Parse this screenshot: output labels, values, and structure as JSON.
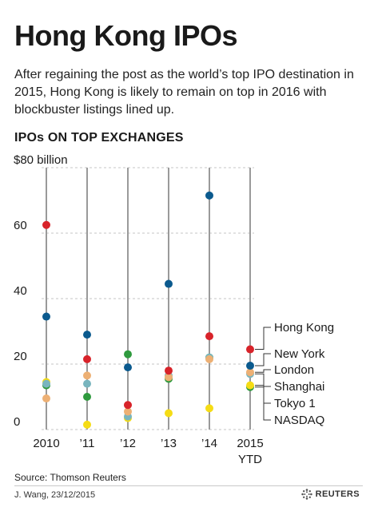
{
  "header": {
    "title": "Hong Kong IPOs",
    "subtitle": "After regaining the post as the world’s top IPO destination in 2015, Hong Kong is likely to remain on top in 2016 with blockbuster listings lined up.",
    "section_label": "IPOs ON TOP EXCHANGES"
  },
  "footer": {
    "source": "Source: Thomson Reuters",
    "credit": "J. Wang, 23/12/2015",
    "logo_text": "REUTERS"
  },
  "chart_data": {
    "type": "scatter",
    "categories": [
      "2010",
      "’11",
      "’12",
      "’13",
      "’14",
      "2015"
    ],
    "category_sublabels": [
      "",
      "",
      "",
      "",
      "",
      "YTD"
    ],
    "y_unit_label": "$80 billion",
    "yticks": [
      "0",
      "20",
      "40",
      "60"
    ],
    "ylim": [
      0,
      80
    ],
    "grid": "dashed horizontal gridlines, vertical line per category",
    "legend": "right side, labels pointing to 2015 values",
    "series": [
      {
        "name": "Hong Kong",
        "color": "#d8232a",
        "values": [
          62.5,
          21.5,
          7.5,
          18.0,
          28.5,
          24.5
        ]
      },
      {
        "name": "New York",
        "color": "#0b5a8e",
        "values": [
          34.5,
          29.0,
          19.0,
          44.5,
          71.5,
          19.5
        ]
      },
      {
        "name": "London",
        "color": "#edb074",
        "values": [
          9.5,
          16.5,
          5.5,
          16.0,
          21.5,
          17.5
        ]
      },
      {
        "name": "Shanghai",
        "color": "#79b5be",
        "values": [
          14.0,
          14.0,
          4.0,
          16.5,
          22.0,
          17.0
        ]
      },
      {
        "name": "Tokyo 1",
        "color": "#f5dc15",
        "values": [
          14.5,
          1.5,
          3.5,
          5.0,
          6.5,
          13.5
        ]
      },
      {
        "name": "NASDAQ",
        "color": "#2f9a3e",
        "values": [
          13.5,
          10.0,
          23.0,
          15.5,
          22.0,
          13.0
        ]
      }
    ]
  }
}
